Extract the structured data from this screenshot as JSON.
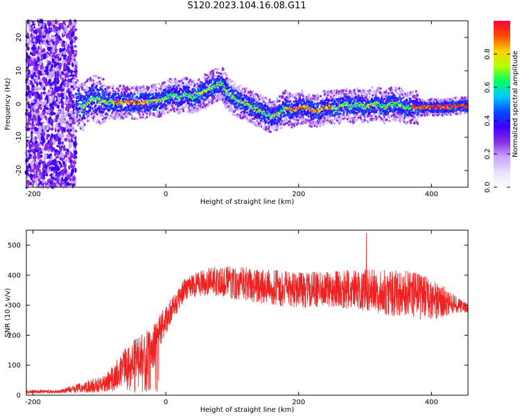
{
  "title": "S120.2023.104.16.08.G11",
  "colors": {
    "snr_line": "#ee2222",
    "background": "#ffffff",
    "axis": "#000000",
    "spectrogram_colormap": [
      "#ffffff",
      "#eadcff",
      "#c7a6ff",
      "#8a2be2",
      "#3b00ff",
      "#0050ff",
      "#00c8ff",
      "#00ff64",
      "#b4ff00",
      "#ffd200",
      "#ff4a00",
      "#ff003c"
    ]
  },
  "chart_data": [
    {
      "type": "heatmap",
      "name": "spectrogram",
      "xlabel": "Height of straight line (km)",
      "ylabel": "Frequency (Hz)",
      "xlim": [
        -210,
        455
      ],
      "ylim": [
        -25,
        25
      ],
      "xticks": [
        -200,
        0,
        200,
        400
      ],
      "yticks": [
        -20,
        -10,
        0,
        10,
        20
      ],
      "colorbar": {
        "label": "Normalized spectral amplitude",
        "range": [
          0,
          1
        ],
        "ticks": [
          "0.0",
          "0.2",
          "0.4",
          "0.6",
          "0.8"
        ]
      },
      "ridge_centerline": {
        "x": [
          -135,
          -125,
          -110,
          -100,
          -90,
          -70,
          -50,
          -30,
          -10,
          0,
          10,
          20,
          30,
          40,
          50,
          60,
          70,
          80,
          85,
          90,
          100,
          110,
          120,
          130,
          140,
          150,
          160,
          170,
          180,
          190,
          200,
          210,
          220,
          230,
          240,
          250,
          260,
          270,
          280,
          290,
          300,
          310,
          320,
          330,
          340,
          350,
          360,
          380,
          400,
          420,
          440,
          455
        ],
        "y": [
          1,
          -1,
          2,
          1,
          0.5,
          0.5,
          0.5,
          0.5,
          1,
          2,
          3,
          2,
          3,
          2,
          3,
          4,
          5,
          6,
          6,
          4,
          2,
          1,
          0,
          -1,
          -2,
          -3,
          -4,
          -3,
          -1,
          -2,
          -1,
          -1,
          -2,
          -2,
          -1,
          -1,
          -1,
          0,
          -1,
          0,
          -1,
          0,
          0,
          -1,
          0,
          0,
          -1,
          -1,
          -1,
          -1,
          -0.5,
          -0.5
        ]
      },
      "noise_region_x": [
        -210,
        -135
      ]
    },
    {
      "type": "line",
      "name": "snr",
      "xlabel": "Height of straight line (km)",
      "ylabel": "SNR (10 * v/v)",
      "xlim": [
        -210,
        455
      ],
      "ylim": [
        0,
        550
      ],
      "xticks": [
        -200,
        0,
        200,
        400
      ],
      "yticks": [
        0,
        100,
        200,
        300,
        400,
        500
      ],
      "envelope": {
        "x": [
          -210,
          -160,
          -90,
          -80,
          -60,
          -40,
          -20,
          -10,
          0,
          10,
          20,
          30,
          50,
          80,
          100,
          150,
          200,
          250,
          300,
          350,
          380,
          400,
          420,
          440,
          455
        ],
        "mean": [
          12,
          12,
          40,
          60,
          100,
          130,
          150,
          210,
          250,
          290,
          320,
          360,
          375,
          380,
          375,
          360,
          350,
          355,
          350,
          340,
          330,
          320,
          310,
          300,
          290
        ],
        "spread": [
          6,
          6,
          30,
          40,
          60,
          70,
          80,
          60,
          50,
          40,
          35,
          40,
          45,
          50,
          55,
          60,
          60,
          60,
          70,
          80,
          80,
          70,
          50,
          25,
          15
        ]
      },
      "peak": {
        "x": 302,
        "y": 540
      }
    }
  ]
}
